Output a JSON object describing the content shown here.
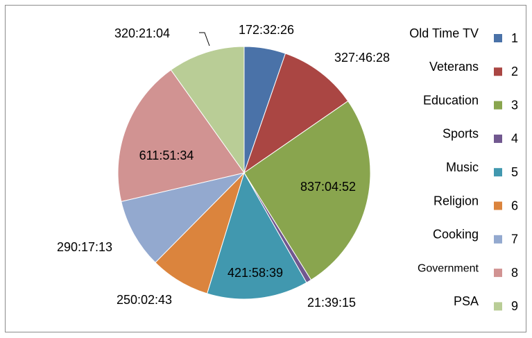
{
  "chart_data": {
    "type": "pie",
    "categories": [
      "Old Time TV",
      "Veterans",
      "Education",
      "Sports",
      "Music",
      "Religion",
      "Cooking",
      "Government",
      "PSA"
    ],
    "ids": [
      1,
      2,
      3,
      4,
      5,
      6,
      7,
      8,
      9
    ],
    "values": [
      621146,
      1179988,
      3013492,
      77955,
      1519119,
      900163,
      1045033,
      2202694,
      1153264
    ],
    "value_labels": [
      "172:32:26",
      "327:46:28",
      "837:04:52",
      "21:39:15",
      "421:58:39",
      "250:02:43",
      "290:17:13",
      "611:51:34",
      "320:21:04"
    ],
    "colors": [
      "#4a72a8",
      "#aa4643",
      "#89a54e",
      "#71588f",
      "#4198af",
      "#db843d",
      "#93a9cf",
      "#d19392",
      "#b9cd96"
    ],
    "legend": "right"
  }
}
